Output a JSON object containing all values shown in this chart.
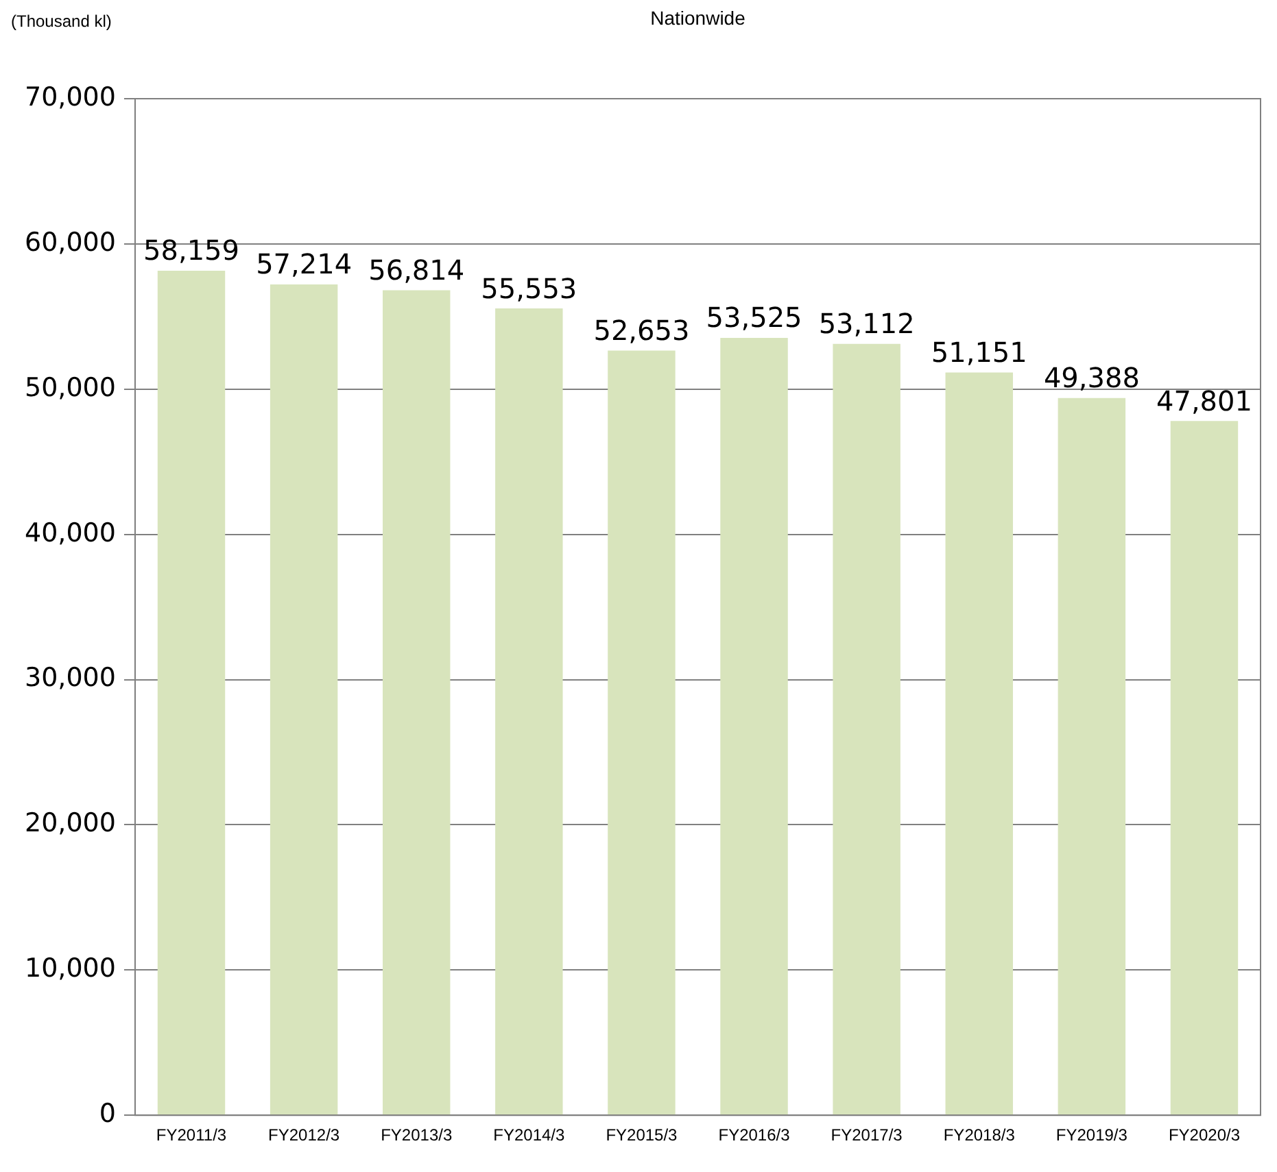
{
  "chart_data": {
    "type": "bar",
    "title": "Nationwide",
    "ylabel": "(Thousand kl)",
    "categories": [
      "FY2011/3",
      "FY2012/3",
      "FY2013/3",
      "FY2014/3",
      "FY2015/3",
      "FY2016/3",
      "FY2017/3",
      "FY2018/3",
      "FY2019/3",
      "FY2020/3"
    ],
    "values": [
      58159,
      57214,
      56814,
      55553,
      52653,
      53525,
      53112,
      51151,
      49388,
      47801
    ],
    "value_labels": [
      "58,159",
      "57,214",
      "56,814",
      "55,553",
      "52,653",
      "53,525",
      "53,112",
      "51,151",
      "49,388",
      "47,801"
    ],
    "color": "#d8e4bc",
    "ylim": [
      0,
      70000
    ],
    "yticks": [
      0,
      {
        "value": 10000,
        "label": "10,000"
      },
      {
        "value": 20000,
        "label": "20,000"
      },
      {
        "value": 30000,
        "label": "30,000"
      },
      {
        "value": 40000,
        "label": "40,000"
      },
      {
        "value": 50000,
        "label": "50,000"
      },
      {
        "value": 60000,
        "label": "60,000"
      },
      {
        "value": 70000,
        "label": "70,000"
      }
    ],
    "grid": "y",
    "legend": false
  }
}
